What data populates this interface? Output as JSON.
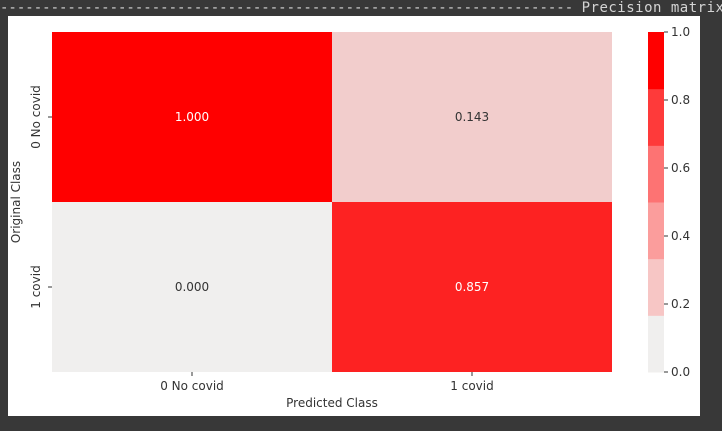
{
  "header": {
    "title": "Precision matrix"
  },
  "chart_data": {
    "type": "heatmap",
    "title": "",
    "xlabel": "Predicted Class",
    "ylabel": "Original Class",
    "x_categories": [
      "0 No covid",
      "1 covid"
    ],
    "y_categories": [
      "0 No covid",
      "1 covid"
    ],
    "values": [
      [
        1.0,
        0.143
      ],
      [
        0.0,
        0.857
      ]
    ],
    "value_labels": [
      [
        "1.000",
        "0.143"
      ],
      [
        "0.000",
        "0.857"
      ]
    ],
    "colorbar": {
      "range": [
        0.0,
        1.0
      ],
      "ticks": [
        "0.0",
        "0.2",
        "0.4",
        "0.6",
        "0.8",
        "1.0"
      ],
      "levels": [
        "#f0efee",
        "#f7c6c5",
        "#fb9d9c",
        "#fd7373",
        "#fe3a3a",
        "#ff0000"
      ]
    },
    "colors": {
      "high": "#ff0000",
      "low": "#f0efee",
      "text_on_high": "#ffffff",
      "text_on_low": "#333333"
    }
  }
}
